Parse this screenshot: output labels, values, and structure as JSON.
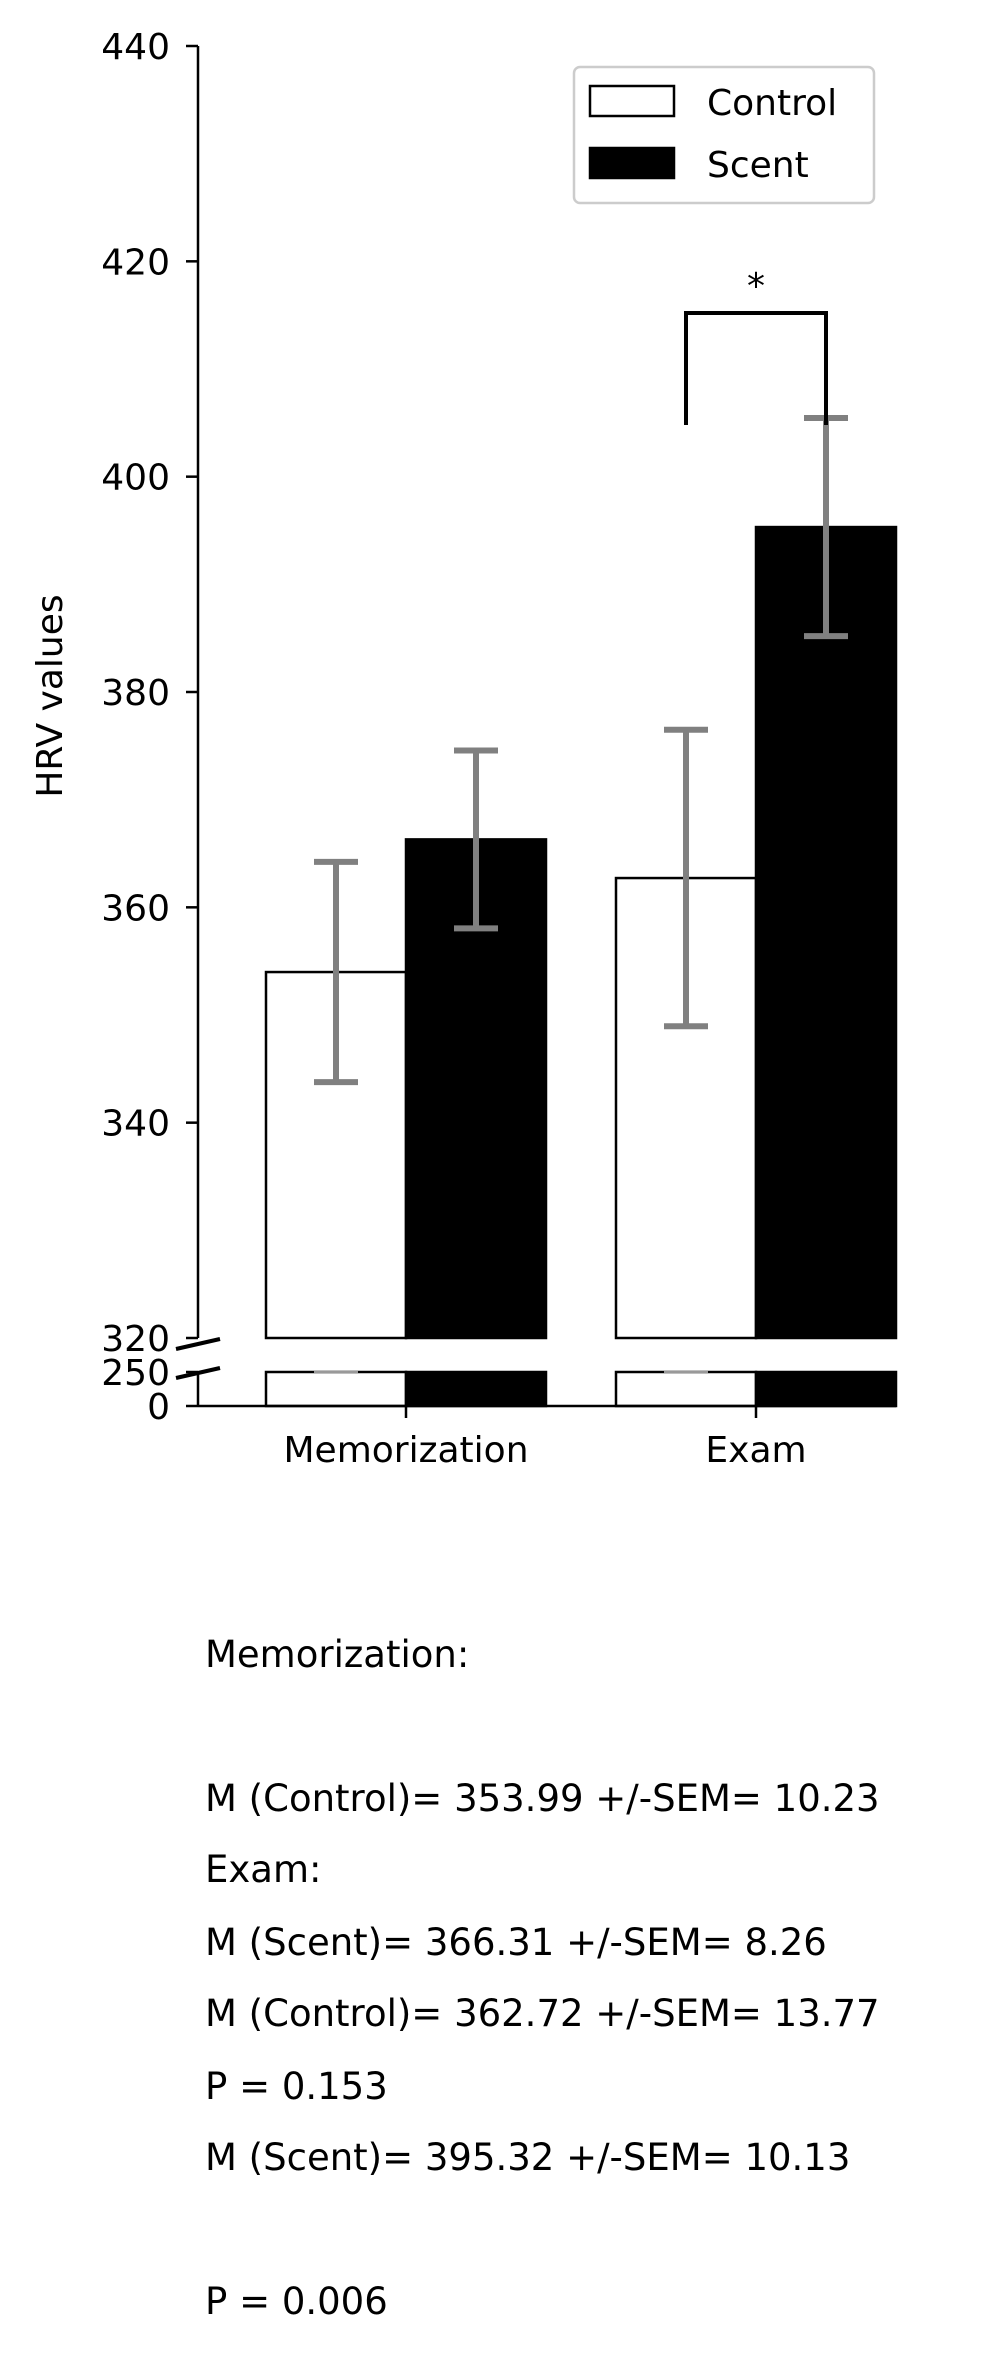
{
  "chart_data": {
    "type": "bar",
    "categories": [
      "Memorization",
      "Exam"
    ],
    "series": [
      {
        "name": "Control",
        "values": [
          353.99,
          362.72
        ],
        "sem": [
          10.23,
          13.77
        ],
        "fill": "#ffffff",
        "edge": "#000000"
      },
      {
        "name": "Scent",
        "values": [
          366.31,
          395.32
        ],
        "sem": [
          8.26,
          10.13
        ],
        "fill": "#000000",
        "edge": "#000000"
      }
    ],
    "ylabel": "HRV values",
    "xlabel": "",
    "ylim_upper": [
      320,
      440
    ],
    "ylim_lower": [
      0,
      250
    ],
    "yticks_upper": [
      "320",
      "340",
      "360",
      "380",
      "400",
      "420",
      "440"
    ],
    "yticks_lower": [
      "0",
      "250"
    ],
    "axis_break": true,
    "errorbar_color": "#808080",
    "legend": {
      "placement": "top-right",
      "entries": [
        "Control",
        "Scent"
      ]
    },
    "significance": {
      "category": "Exam",
      "label": "*"
    },
    "grid": false
  },
  "stats": [
    {
      "title": "Memorization:",
      "lines": [
        "M (Control)= 353.99 +/-SEM= 10.23",
        "M (Scent)= 366.31 +/-SEM= 8.26",
        "P = 0.153"
      ]
    },
    {
      "title": "Exam:",
      "lines": [
        "M (Control)= 362.72 +/-SEM= 13.77",
        "M (Scent)= 395.32 +/-SEM= 10.13",
        "P = 0.006"
      ]
    }
  ]
}
